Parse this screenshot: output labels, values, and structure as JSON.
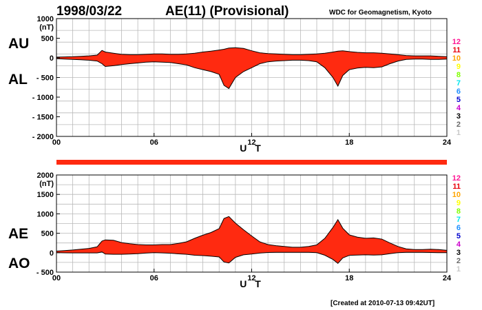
{
  "header": {
    "date": "1998/03/22",
    "title": "AE(11) (Provisional)",
    "source": "WDC for Geomagnetism, Kyoto"
  },
  "footer": {
    "created": "[Created at 2010-07-13 09:42UT]"
  },
  "colors": {
    "fill": "#ff2a10",
    "line": "#000000",
    "grid": "#b8b8b8",
    "bar": "#ff2a10"
  },
  "station_scale": [
    {
      "label": "12",
      "color": "#ff1493"
    },
    {
      "label": "11",
      "color": "#e8000b"
    },
    {
      "label": "10",
      "color": "#ffa500"
    },
    {
      "label": "9",
      "color": "#ffff00"
    },
    {
      "label": "8",
      "color": "#7fff00"
    },
    {
      "label": "7",
      "color": "#00e5ee"
    },
    {
      "label": "6",
      "color": "#1e90ff"
    },
    {
      "label": "5",
      "color": "#0000cd"
    },
    {
      "label": "4",
      "color": "#cc00cc"
    },
    {
      "label": "3",
      "color": "#000000"
    },
    {
      "label": "2",
      "color": "#696969"
    },
    {
      "label": "1",
      "color": "#c8c8c8"
    }
  ],
  "chart_data": [
    {
      "type": "area",
      "panel": "AU/AL",
      "ylabel_upper": "AU",
      "ylabel_lower": "AL",
      "unit": "(nT)",
      "xlabel": "U T",
      "xlim": [
        0,
        24
      ],
      "ylim": [
        -2000,
        1000
      ],
      "xticks": [
        0,
        6,
        12,
        18,
        24
      ],
      "xtick_labels": [
        "00",
        "06",
        "12",
        "18",
        "24"
      ],
      "yticks": [
        1000,
        500,
        0,
        -500,
        -1000,
        -1500,
        -2000
      ],
      "ytick_labels": [
        "1000",
        "500",
        "0",
        "- 500",
        "- 1000",
        "- 1500",
        "- 2000"
      ],
      "grid": true,
      "x": [
        0,
        0.5,
        1,
        1.5,
        2,
        2.5,
        2.8,
        3,
        3.5,
        4,
        4.5,
        5,
        5.5,
        6,
        6.5,
        7,
        7.5,
        8,
        8.5,
        9,
        9.5,
        10,
        10.3,
        10.6,
        11,
        11.5,
        12,
        12.5,
        13,
        13.5,
        14,
        14.5,
        15,
        15.5,
        16,
        16.5,
        17,
        17.3,
        17.6,
        18,
        18.5,
        19,
        19.5,
        20,
        20.5,
        21,
        21.5,
        22,
        22.5,
        23,
        23.5,
        24
      ],
      "series": [
        {
          "name": "AU",
          "values": [
            20,
            25,
            30,
            40,
            50,
            70,
            190,
            150,
            120,
            90,
            80,
            80,
            90,
            100,
            100,
            90,
            90,
            100,
            120,
            150,
            170,
            200,
            220,
            250,
            260,
            240,
            180,
            130,
            110,
            100,
            90,
            80,
            80,
            90,
            100,
            120,
            150,
            170,
            180,
            160,
            140,
            130,
            130,
            120,
            100,
            80,
            60,
            50,
            50,
            50,
            40,
            30
          ]
        },
        {
          "name": "AL",
          "values": [
            -20,
            -30,
            -40,
            -50,
            -60,
            -80,
            -150,
            -220,
            -200,
            -170,
            -150,
            -130,
            -110,
            -100,
            -110,
            -120,
            -150,
            -180,
            -250,
            -300,
            -350,
            -420,
            -700,
            -780,
            -500,
            -350,
            -250,
            -150,
            -100,
            -80,
            -70,
            -60,
            -60,
            -70,
            -100,
            -250,
            -500,
            -720,
            -450,
            -300,
            -260,
            -240,
            -250,
            -230,
            -150,
            -80,
            -40,
            -30,
            -30,
            -40,
            -40,
            -30
          ]
        }
      ]
    },
    {
      "type": "area",
      "panel": "AE/AO",
      "ylabel_upper": "AE",
      "ylabel_lower": "AO",
      "unit": "(nT)",
      "xlabel": "U T",
      "xlim": [
        0,
        24
      ],
      "ylim": [
        -500,
        2000
      ],
      "xticks": [
        0,
        6,
        12,
        18,
        24
      ],
      "xtick_labels": [
        "00",
        "06",
        "12",
        "18",
        "24"
      ],
      "yticks": [
        2000,
        1500,
        1000,
        500,
        0,
        -500
      ],
      "ytick_labels": [
        "2000",
        "1500",
        "1000",
        "500",
        "0",
        "- 500"
      ],
      "grid": true,
      "x": [
        0,
        0.5,
        1,
        1.5,
        2,
        2.5,
        2.8,
        3,
        3.5,
        4,
        4.5,
        5,
        5.5,
        6,
        6.5,
        7,
        7.5,
        8,
        8.5,
        9,
        9.5,
        10,
        10.3,
        10.6,
        11,
        11.5,
        12,
        12.5,
        13,
        13.5,
        14,
        14.5,
        15,
        15.5,
        16,
        16.5,
        17,
        17.3,
        17.6,
        18,
        18.5,
        19,
        19.5,
        20,
        20.5,
        21,
        21.5,
        22,
        22.5,
        23,
        23.5,
        24
      ],
      "series": [
        {
          "name": "AE",
          "values": [
            40,
            55,
            70,
            90,
            110,
            150,
            300,
            330,
            320,
            260,
            230,
            210,
            200,
            200,
            210,
            210,
            240,
            280,
            370,
            450,
            520,
            620,
            880,
            930,
            760,
            590,
            430,
            280,
            210,
            180,
            160,
            140,
            140,
            160,
            200,
            370,
            650,
            850,
            630,
            460,
            400,
            370,
            380,
            350,
            250,
            160,
            100,
            80,
            80,
            90,
            80,
            60
          ]
        },
        {
          "name": "AO",
          "values": [
            0,
            -3,
            -5,
            -5,
            -5,
            -5,
            20,
            -35,
            -40,
            -40,
            -35,
            -25,
            -10,
            0,
            -5,
            -15,
            -30,
            -40,
            -65,
            -75,
            -90,
            -110,
            -240,
            -265,
            -120,
            -55,
            -35,
            -10,
            5,
            10,
            10,
            10,
            10,
            10,
            0,
            -65,
            -175,
            -275,
            -135,
            -70,
            -60,
            -55,
            -60,
            -55,
            -25,
            0,
            10,
            10,
            10,
            5,
            0,
            0
          ]
        }
      ]
    }
  ]
}
